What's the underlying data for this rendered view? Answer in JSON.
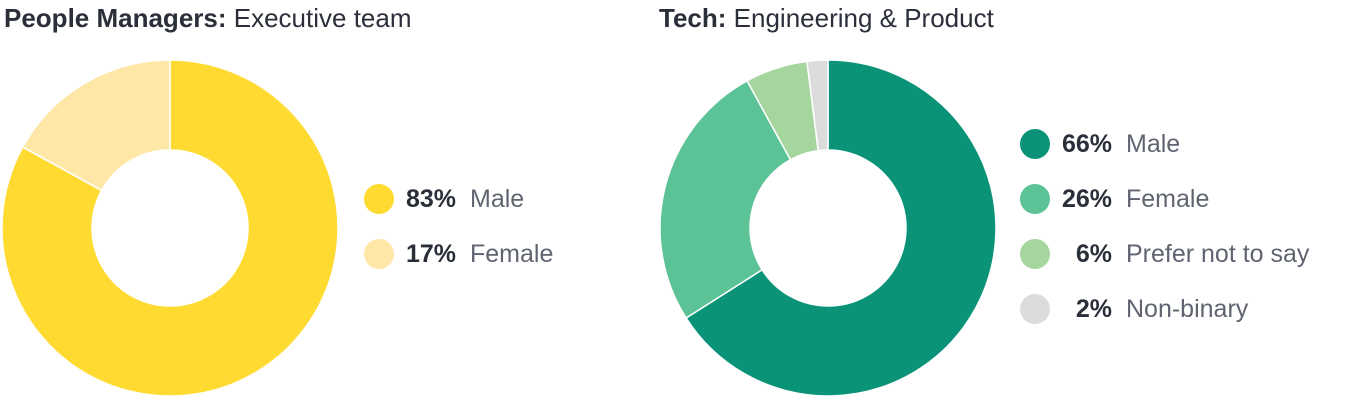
{
  "charts": [
    {
      "title_strong": "People Managers:",
      "title_rest": "Executive team"
    },
    {
      "title_strong": "Tech:",
      "title_rest": "Engineering & Product"
    }
  ],
  "chart_data": [
    {
      "type": "pie",
      "title": "People Managers: Executive team",
      "categories": [
        "Male",
        "Female"
      ],
      "values": [
        83,
        17
      ],
      "value_labels": [
        "83%",
        "17%"
      ],
      "colors": [
        "#FFDA30",
        "#FFE7A8"
      ],
      "legend": "right"
    },
    {
      "type": "pie",
      "title": "Tech: Engineering & Product",
      "categories": [
        "Male",
        "Female",
        "Prefer not to say",
        "Non-binary"
      ],
      "values": [
        66,
        26,
        6,
        2
      ],
      "value_labels": [
        "66%",
        "26%",
        "6%",
        "2%"
      ],
      "colors": [
        "#0A9377",
        "#5CC396",
        "#A5D69E",
        "#DCDCDC"
      ],
      "legend": "right"
    }
  ]
}
